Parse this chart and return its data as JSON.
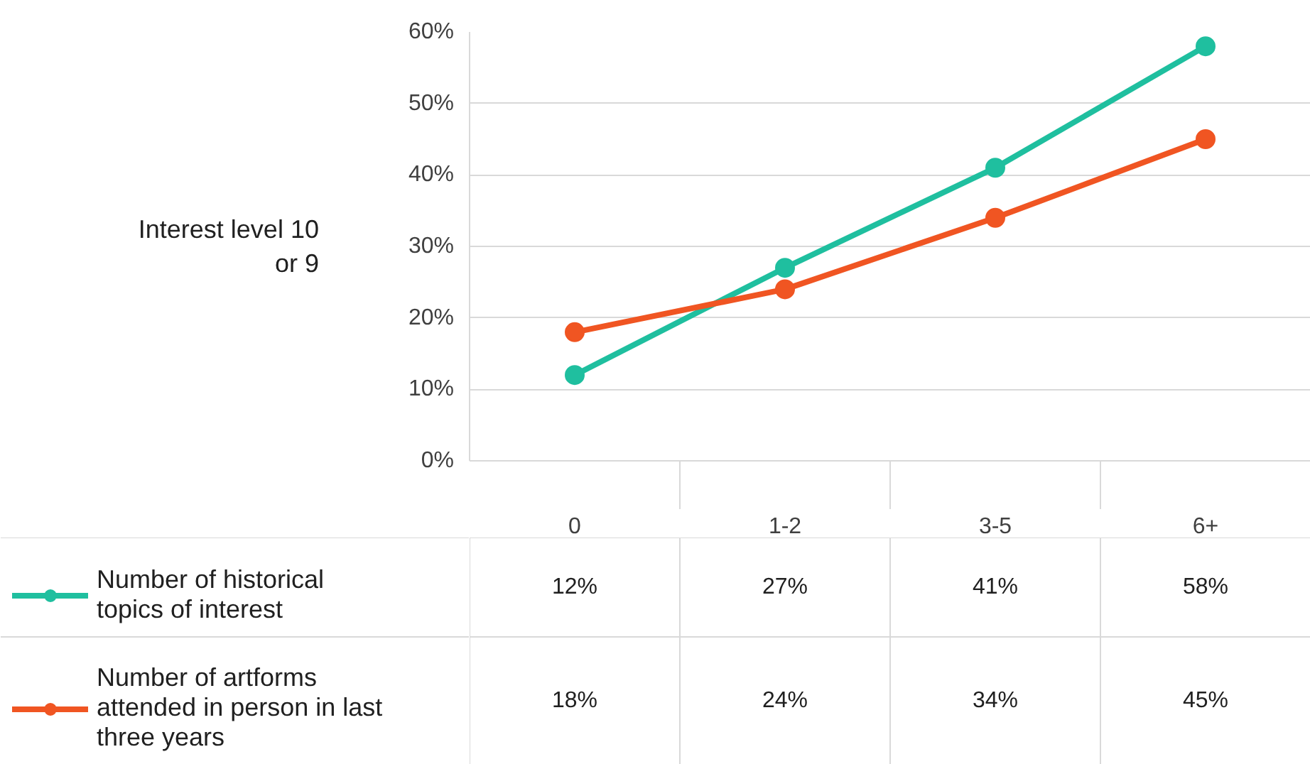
{
  "chart_data": {
    "type": "line",
    "ylabel": "Interest level 10\nor 9",
    "categories": [
      "0",
      "1-2",
      "3-5",
      "6+"
    ],
    "series": [
      {
        "name": "Number of historical\ntopics of interest",
        "color": "#1fbf9f",
        "values": [
          12,
          27,
          41,
          58
        ],
        "value_labels": [
          "12%",
          "27%",
          "41%",
          "58%"
        ]
      },
      {
        "name": "Number of artforms\nattended in person in last\nthree years",
        "color": "#f05522",
        "values": [
          18,
          24,
          34,
          45
        ],
        "value_labels": [
          "18%",
          "24%",
          "34%",
          "45%"
        ]
      }
    ],
    "ylim": [
      0,
      60
    ],
    "yticks": [
      {
        "value": 0,
        "label": "0%"
      },
      {
        "value": 10,
        "label": "10%"
      },
      {
        "value": 20,
        "label": "20%"
      },
      {
        "value": 30,
        "label": "30%"
      },
      {
        "value": 40,
        "label": "40%"
      },
      {
        "value": 50,
        "label": "50%"
      },
      {
        "value": 60,
        "label": "60%"
      }
    ],
    "grid": "y",
    "marker": "circle",
    "line_style": "solid",
    "legend": "bottom left"
  }
}
